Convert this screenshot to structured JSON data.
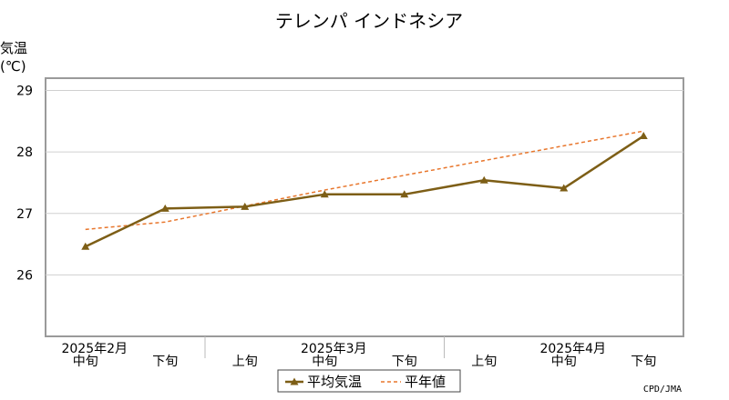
{
  "chart_data": {
    "type": "line",
    "title": "テレンパ インドネシア",
    "ylabel_line1": "気温",
    "ylabel_line2": "(℃)",
    "ylim": [
      25.0,
      29.2
    ],
    "yticks": [
      26,
      27,
      28,
      29
    ],
    "ytick_labels": [
      "26",
      "27",
      "28",
      "29"
    ],
    "categories": [
      "中旬",
      "下旬",
      "上旬",
      "中旬",
      "下旬",
      "上旬",
      "中旬",
      "下旬"
    ],
    "month_labels": [
      {
        "label": "2025年2月",
        "index": 0
      },
      {
        "label": "2025年3月",
        "index": 3
      },
      {
        "label": "2025年4月",
        "index": 6
      }
    ],
    "series": [
      {
        "name": "平均気温",
        "color": "#7d5e16",
        "marker": "triangle",
        "values": [
          26.46,
          27.08,
          27.11,
          27.31,
          27.31,
          27.54,
          27.41,
          28.26
        ]
      },
      {
        "name": "平年値",
        "color": "#e8762c",
        "style": "dashed",
        "values": [
          26.74,
          26.86,
          27.12,
          27.38,
          27.62,
          27.86,
          28.1,
          28.34
        ]
      }
    ],
    "legend_position": "bottom-center",
    "grid": true
  },
  "credit": "CPD/JMA"
}
